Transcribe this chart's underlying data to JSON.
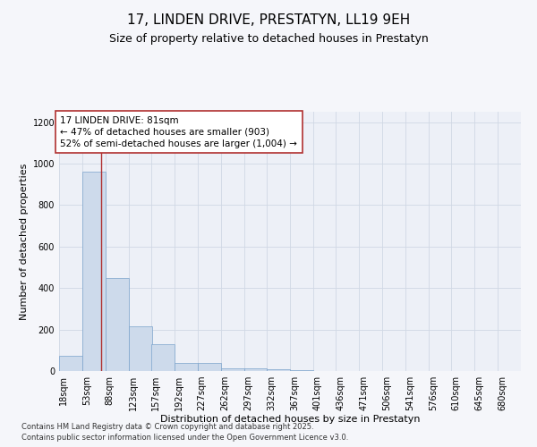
{
  "title_line1": "17, LINDEN DRIVE, PRESTATYN, LL19 9EH",
  "title_line2": "Size of property relative to detached houses in Prestatyn",
  "xlabel": "Distribution of detached houses by size in Prestatyn",
  "ylabel": "Number of detached properties",
  "bar_color": "#cddaeb",
  "bar_edge_color": "#7ba3cc",
  "grid_color": "#d0d8e4",
  "background_color": "#edf0f7",
  "fig_background_color": "#f5f6fa",
  "vline_color": "#b03030",
  "vline_x": 81,
  "annotation_text": "17 LINDEN DRIVE: 81sqm\n← 47% of detached houses are smaller (903)\n52% of semi-detached houses are larger (1,004) →",
  "annotation_box_facecolor": "#ffffff",
  "annotation_border_color": "#b03030",
  "footnote1": "Contains HM Land Registry data © Crown copyright and database right 2025.",
  "footnote2": "Contains public sector information licensed under the Open Government Licence v3.0.",
  "bin_edges": [
    18,
    53,
    88,
    123,
    157,
    192,
    227,
    262,
    297,
    332,
    367,
    401,
    436,
    471,
    506,
    541,
    576,
    610,
    645,
    680,
    715
  ],
  "bar_heights": [
    75,
    960,
    450,
    215,
    130,
    40,
    38,
    15,
    15,
    10,
    5,
    0,
    0,
    0,
    0,
    0,
    0,
    0,
    0,
    0
  ],
  "ylim": [
    0,
    1250
  ],
  "yticks": [
    0,
    200,
    400,
    600,
    800,
    1000,
    1200
  ],
  "title_fontsize": 11,
  "subtitle_fontsize": 9,
  "axis_label_fontsize": 8,
  "tick_fontsize": 7,
  "annotation_fontsize": 7.5,
  "footnote_fontsize": 6
}
